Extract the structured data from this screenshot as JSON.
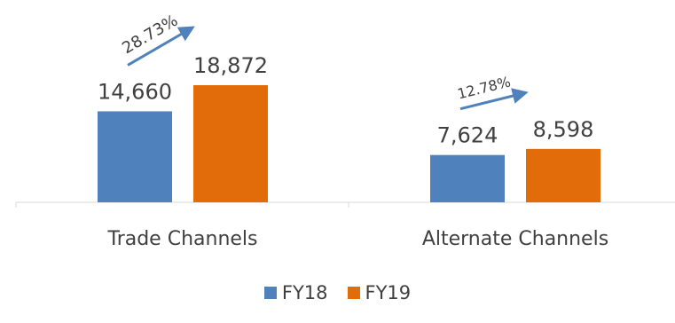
{
  "chart_data": {
    "type": "bar",
    "categories": [
      "Trade Channels",
      "Alternate Channels"
    ],
    "series": [
      {
        "name": "FY18",
        "values": [
          14660,
          7624
        ],
        "labels": [
          "14,660",
          "7,624"
        ],
        "color": "#4f81bd"
      },
      {
        "name": "FY19",
        "values": [
          18872,
          8598
        ],
        "labels": [
          "18,872",
          "8,598"
        ],
        "color": "#e36c0a"
      }
    ],
    "annotations": [
      "28.73%",
      "12.78%"
    ],
    "arrow_color": "#4f81bd",
    "ylim": [
      0,
      18872
    ],
    "grid": false,
    "legend_position": "bottom"
  }
}
